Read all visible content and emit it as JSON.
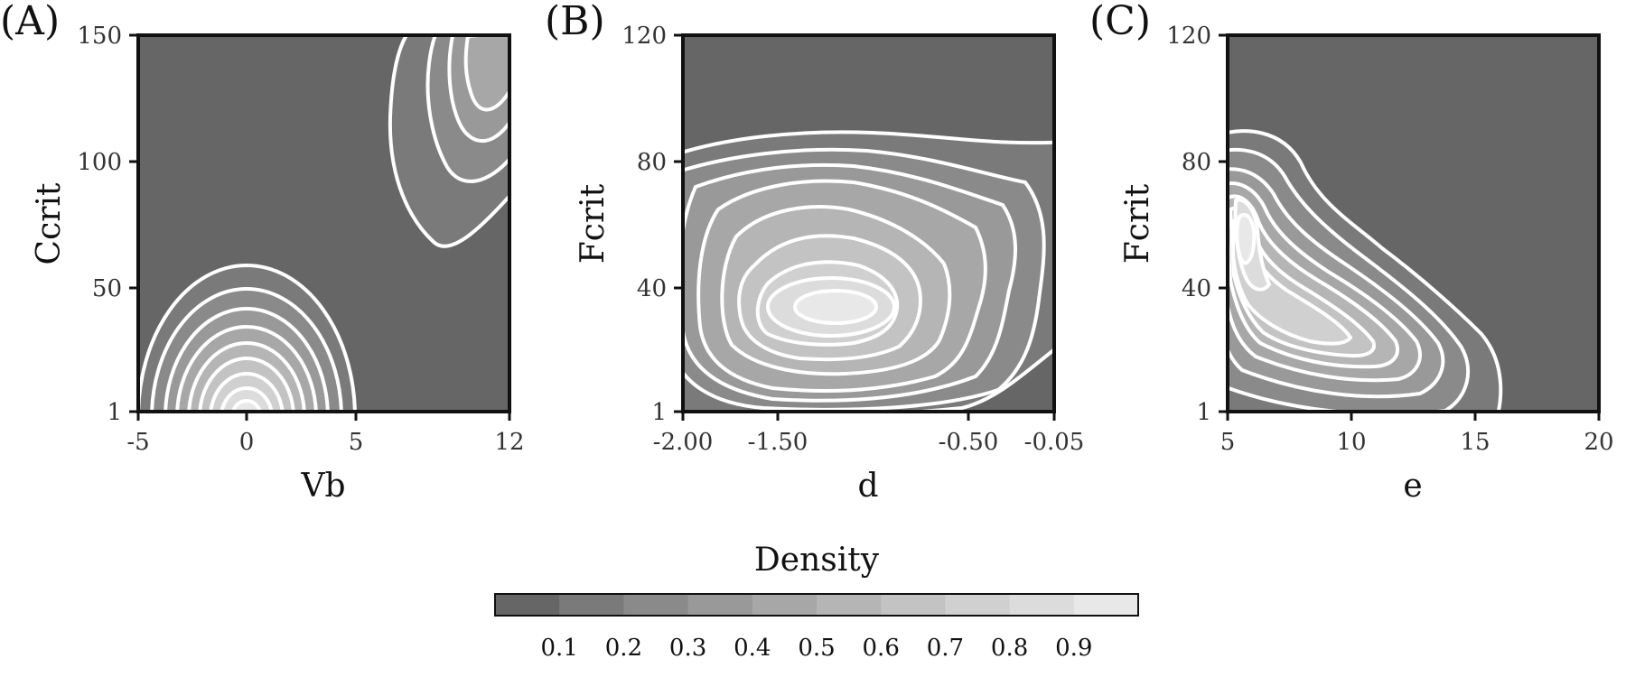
{
  "colors": {
    "background_level": "#666666",
    "contour_line": "#ffffff",
    "frame": "#111111",
    "colorbar_bins": [
      "#666666",
      "#7a7a7a",
      "#8a8a8a",
      "#999999",
      "#a7a7a7",
      "#b5b5b5",
      "#c3c3c3",
      "#d0d0d0",
      "#dcdcdc",
      "#e8e8e8"
    ]
  },
  "chart_data": [
    {
      "type": "contour",
      "panel": "(A)",
      "xlabel": "Vb",
      "ylabel": "Ccrit",
      "xlim": [
        -5,
        12
      ],
      "ylim": [
        1,
        150
      ],
      "xticks": [
        -5,
        0,
        5,
        12
      ],
      "xtick_labels": [
        "-5",
        "0",
        "5",
        "12"
      ],
      "yticks": [
        1,
        50,
        100,
        150
      ],
      "ytick_labels": [
        "1",
        "50",
        "100",
        "150"
      ],
      "modes": [
        {
          "x": 0,
          "y": 1,
          "peak": 0.95
        },
        {
          "x": 11,
          "y": 135,
          "peak": 0.45
        }
      ]
    },
    {
      "type": "contour",
      "panel": "(B)",
      "xlabel": "d",
      "ylabel": "Fcrit",
      "xlim": [
        -2.0,
        -0.05
      ],
      "ylim": [
        1,
        120
      ],
      "xticks": [
        -2.0,
        -1.5,
        -0.5,
        -0.05
      ],
      "xtick_labels": [
        "-2.00",
        "-1.50",
        "-0.50",
        "-0.05"
      ],
      "yticks": [
        1,
        40,
        80,
        120
      ],
      "ytick_labels": [
        "1",
        "40",
        "80",
        "120"
      ],
      "modes": [
        {
          "x": -1.22,
          "y": 28,
          "peak": 0.9
        },
        {
          "x": -0.9,
          "y": 55,
          "peak": 0.5
        }
      ]
    },
    {
      "type": "contour",
      "panel": "(C)",
      "xlabel": "e",
      "ylabel": "Fcrit",
      "xlim": [
        5,
        20
      ],
      "ylim": [
        1,
        120
      ],
      "xticks": [
        5,
        10,
        15,
        20
      ],
      "xtick_labels": [
        "5",
        "10",
        "15",
        "20"
      ],
      "yticks": [
        1,
        40,
        80,
        120
      ],
      "ytick_labels": [
        "1",
        "40",
        "80",
        "120"
      ],
      "modes": [
        {
          "x": 5.5,
          "y": 60,
          "peak": 0.95
        },
        {
          "x": 11,
          "y": 25,
          "peak": 0.75
        }
      ]
    }
  ],
  "colorbar": {
    "title": "Density",
    "ticks": [
      "0.1",
      "0.2",
      "0.3",
      "0.4",
      "0.5",
      "0.6",
      "0.7",
      "0.8",
      "0.9"
    ]
  }
}
